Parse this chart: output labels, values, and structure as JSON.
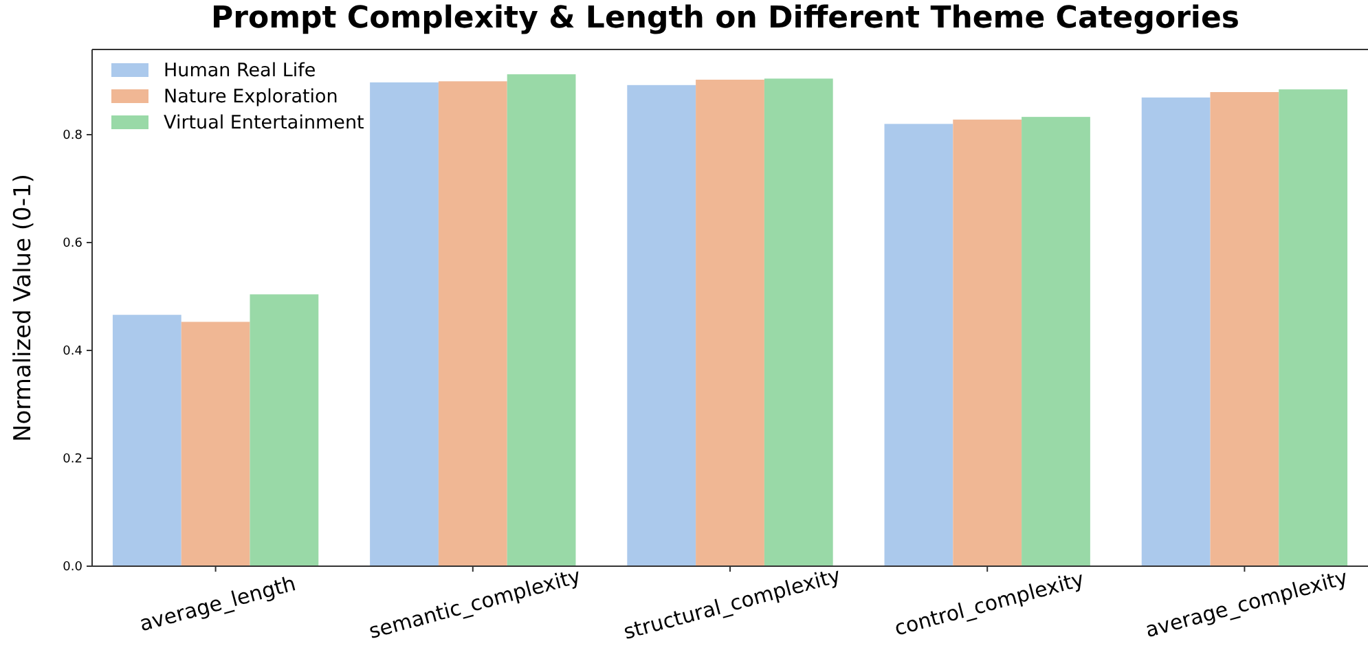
{
  "chart_data": {
    "type": "bar",
    "title": "Prompt Complexity & Length on Different Theme Categories",
    "ylabel": "Normalized Value (0-1)",
    "categories": [
      "average_length",
      "semantic_complexity",
      "structural_complexity",
      "control_complexity",
      "average_complexity"
    ],
    "series": [
      {
        "name": "Human Real Life",
        "color": "#abc9ec",
        "values": [
          0.466,
          0.897,
          0.892,
          0.82,
          0.869
        ]
      },
      {
        "name": "Nature Exploration",
        "color": "#f0b794",
        "values": [
          0.453,
          0.899,
          0.902,
          0.828,
          0.879
        ]
      },
      {
        "name": "Virtual Entertainment",
        "color": "#99d9a7",
        "values": [
          0.504,
          0.912,
          0.904,
          0.833,
          0.884
        ]
      }
    ],
    "ylim": [
      0,
      0.958
    ],
    "yticks": [
      {
        "value": 0,
        "label": "0.0"
      },
      0.2,
      0.4,
      0.6,
      0.8
    ],
    "grid": false,
    "legend": "top left"
  }
}
